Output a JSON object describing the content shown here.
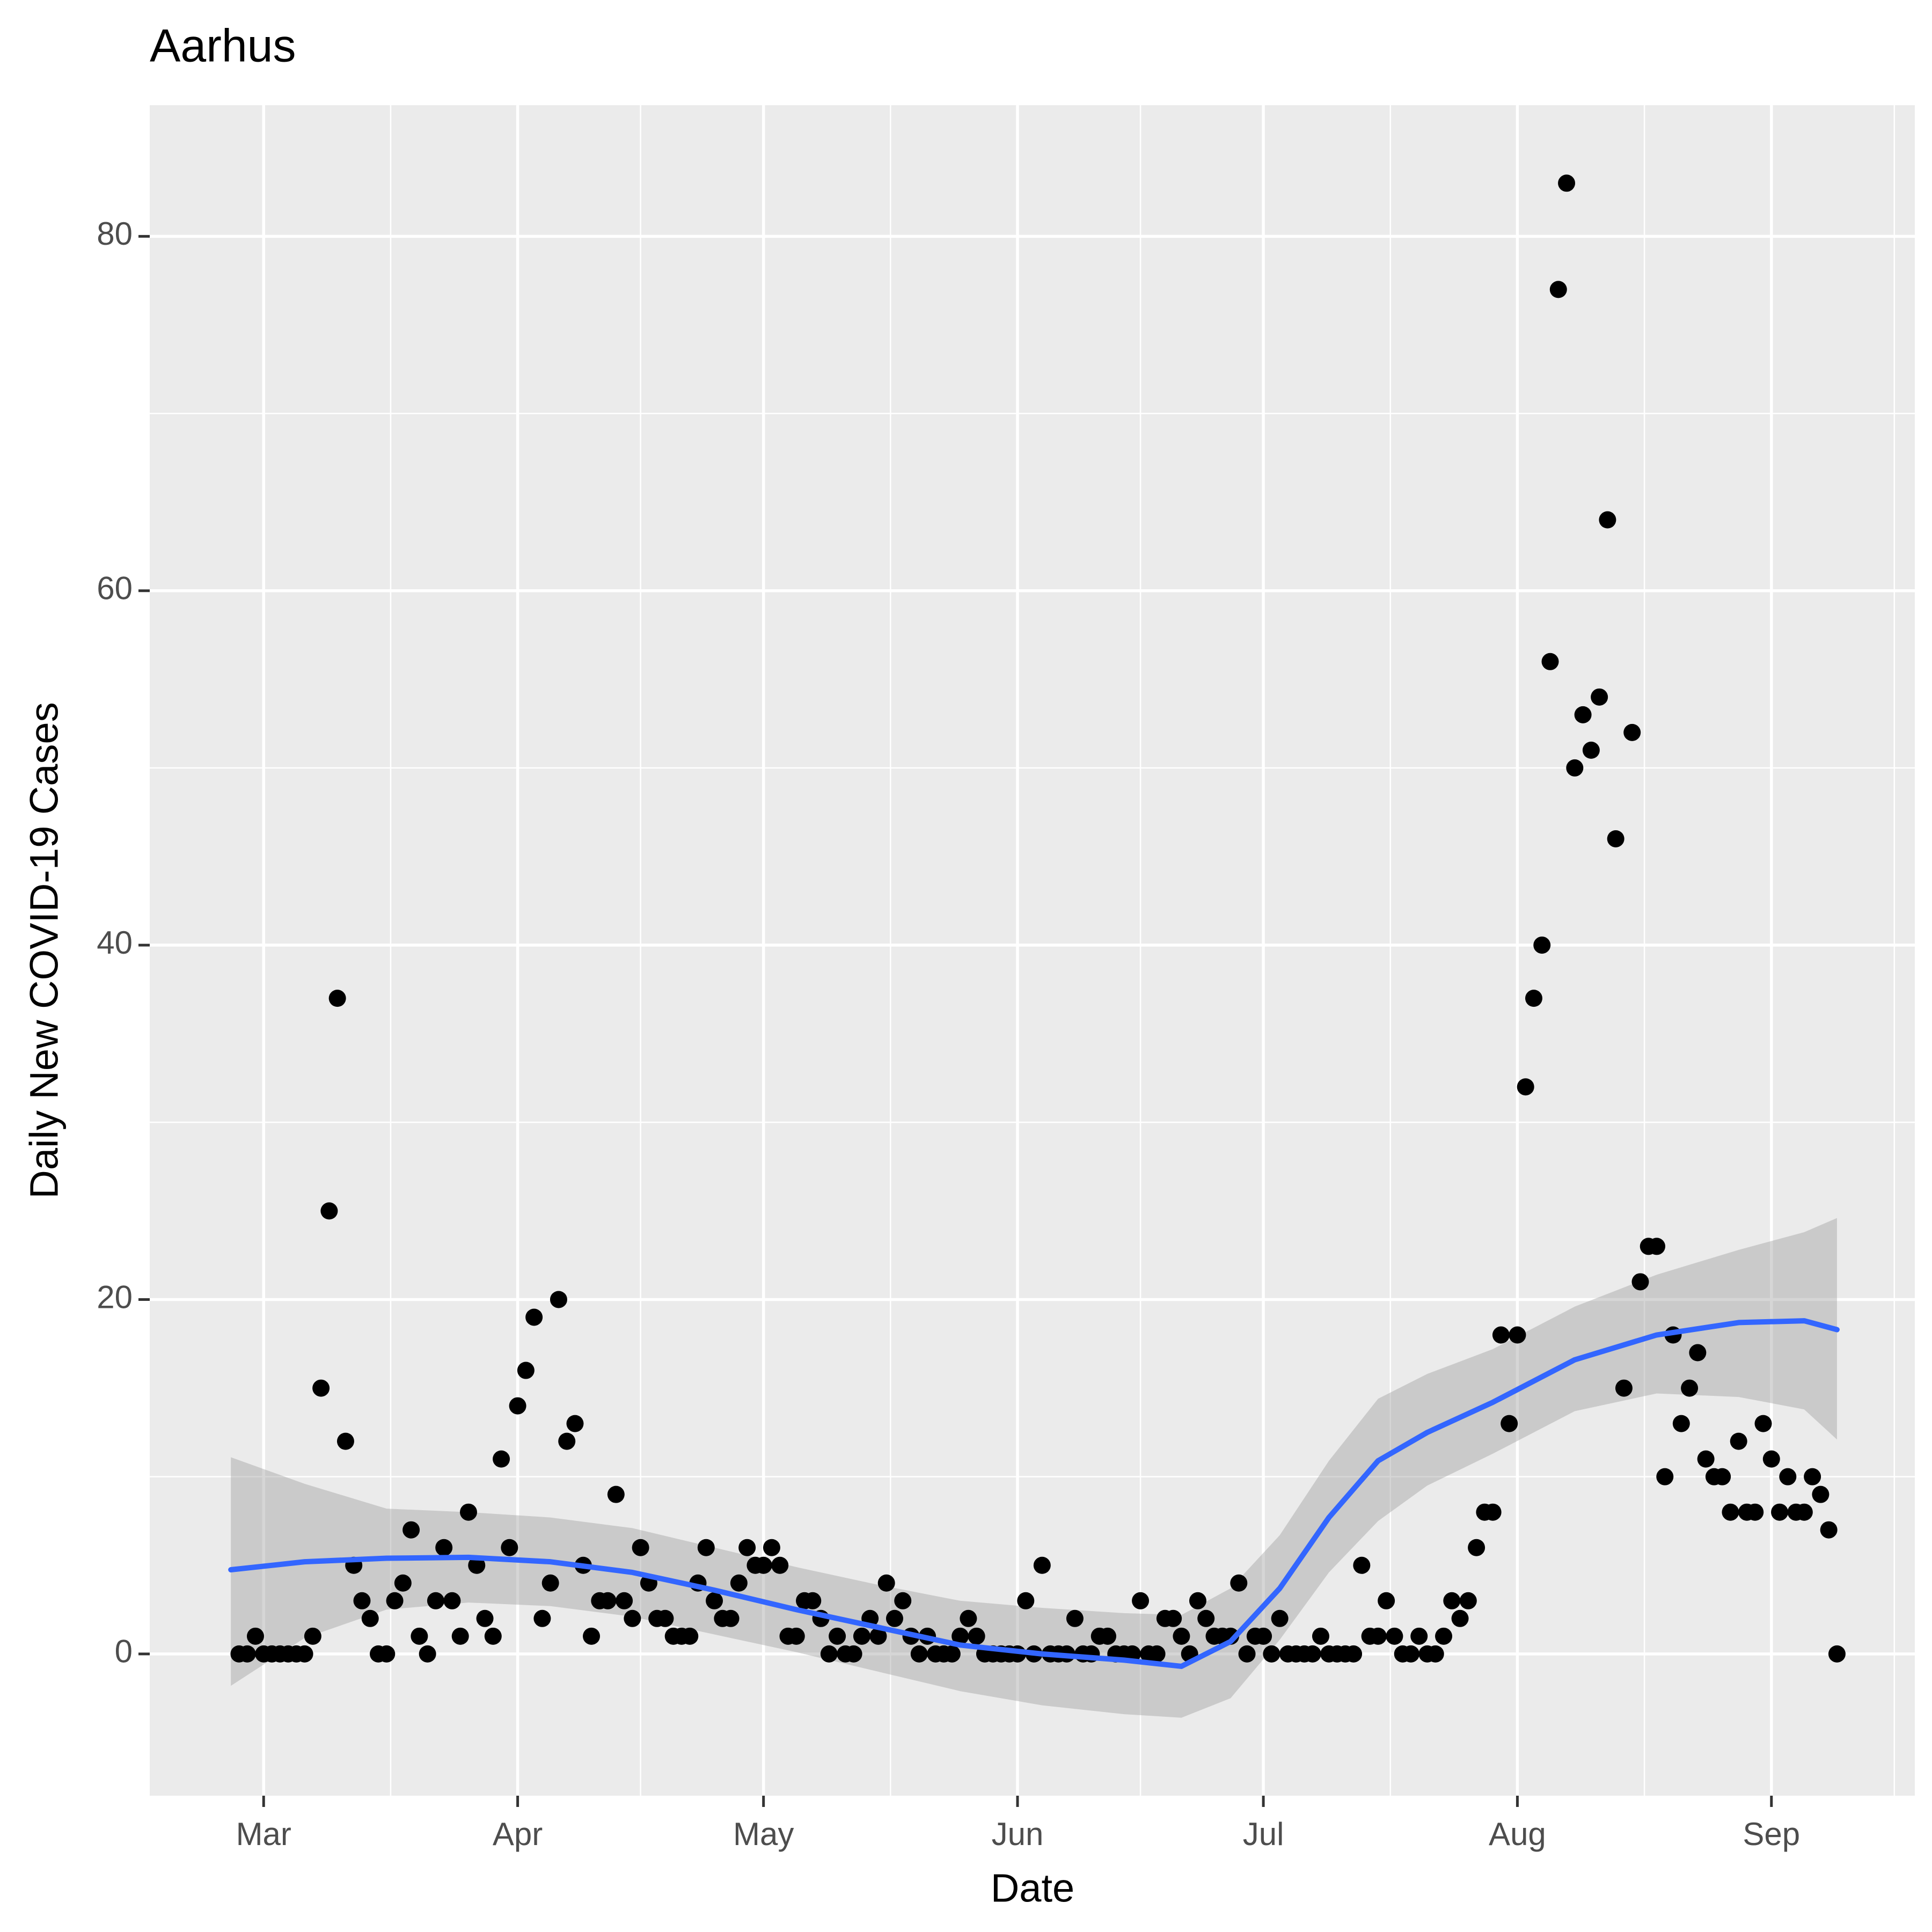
{
  "chart_data": {
    "type": "scatter",
    "title": "Aarhus",
    "x_label": "Date",
    "y_label": "Daily New COVID-19 Cases",
    "x": [
      -3,
      -2,
      -1,
      0,
      1,
      2,
      3,
      4,
      5,
      6,
      7,
      8,
      9,
      10,
      11,
      12,
      13,
      14,
      15,
      16,
      17,
      18,
      19,
      20,
      21,
      22,
      23,
      24,
      25,
      26,
      27,
      28,
      29,
      30,
      31,
      32,
      33,
      34,
      35,
      36,
      37,
      38,
      39,
      40,
      41,
      42,
      43,
      44,
      45,
      46,
      47,
      48,
      49,
      50,
      51,
      52,
      53,
      54,
      55,
      56,
      57,
      58,
      59,
      60,
      61,
      62,
      63,
      64,
      65,
      66,
      67,
      68,
      69,
      70,
      71,
      72,
      73,
      74,
      75,
      76,
      77,
      78,
      79,
      80,
      81,
      82,
      83,
      84,
      85,
      86,
      87,
      88,
      89,
      90,
      91,
      92,
      93,
      94,
      95,
      96,
      97,
      98,
      99,
      100,
      101,
      102,
      103,
      104,
      105,
      106,
      107,
      108,
      109,
      110,
      111,
      112,
      113,
      114,
      115,
      116,
      117,
      118,
      119,
      120,
      121,
      122,
      123,
      124,
      125,
      126,
      127,
      128,
      129,
      130,
      131,
      132,
      133,
      134,
      135,
      136,
      137,
      138,
      139,
      140,
      141,
      142,
      143,
      144,
      145,
      146,
      147,
      148,
      149,
      150,
      151,
      152,
      153,
      154,
      155,
      156,
      157,
      158,
      159,
      160,
      161,
      162,
      163,
      164,
      165,
      166,
      167,
      168,
      169,
      170,
      171,
      172,
      173,
      174,
      175,
      176,
      177,
      178,
      179,
      180,
      181,
      182,
      183,
      184,
      185,
      186,
      187,
      188,
      189,
      190,
      191,
      192
    ],
    "values": [
      0,
      0,
      1,
      0,
      0,
      0,
      0,
      0,
      0,
      1,
      15,
      25,
      37,
      12,
      5,
      3,
      2,
      0,
      0,
      3,
      4,
      7,
      1,
      0,
      3,
      6,
      3,
      1,
      8,
      5,
      2,
      1,
      11,
      6,
      14,
      16,
      19,
      2,
      4,
      20,
      12,
      13,
      5,
      1,
      3,
      3,
      9,
      3,
      2,
      6,
      4,
      2,
      2,
      1,
      1,
      1,
      4,
      6,
      3,
      2,
      2,
      4,
      6,
      5,
      5,
      6,
      5,
      1,
      1,
      3,
      3,
      2,
      0,
      1,
      0,
      0,
      1,
      2,
      1,
      4,
      2,
      3,
      1,
      0,
      1,
      0,
      0,
      0,
      1,
      2,
      1,
      0,
      0,
      0,
      0,
      0,
      3,
      0,
      5,
      0,
      0,
      0,
      2,
      0,
      0,
      1,
      1,
      0,
      0,
      0,
      3,
      0,
      0,
      2,
      2,
      1,
      0,
      3,
      2,
      1,
      1,
      1,
      4,
      0,
      1,
      1,
      0,
      2,
      0,
      0,
      0,
      0,
      1,
      0,
      0,
      0,
      0,
      5,
      1,
      1,
      3,
      1,
      0,
      0,
      1,
      0,
      0,
      1,
      3,
      2,
      3,
      6,
      8,
      8,
      18,
      13,
      18,
      32,
      37,
      40,
      56,
      77,
      83,
      50,
      53,
      51,
      54,
      64,
      46,
      15,
      52,
      21,
      23,
      23,
      10,
      18,
      13,
      15,
      17,
      11,
      10,
      10,
      8,
      12,
      8,
      8,
      13,
      11,
      8,
      10,
      8,
      8,
      10,
      9,
      7,
      0
    ],
    "color": "#000000",
    "smooth": {
      "color": "#3366FF",
      "band_color": "#999999",
      "x": [
        -4,
        5,
        15,
        25,
        35,
        45,
        55,
        65,
        75,
        85,
        95,
        105,
        112,
        118,
        124,
        130,
        136,
        142,
        150,
        160,
        170,
        180,
        188,
        192
      ],
      "values": [
        4.75,
        5.2,
        5.4,
        5.45,
        5.2,
        4.6,
        3.6,
        2.5,
        1.5,
        0.5,
        0.0,
        -0.35,
        -0.7,
        0.7,
        3.7,
        7.7,
        10.9,
        12.5,
        14.2,
        16.6,
        18.0,
        18.7,
        18.8,
        18.3
      ],
      "upper": [
        11.1,
        9.6,
        8.2,
        8.0,
        7.7,
        7.1,
        6.0,
        4.9,
        3.9,
        3.0,
        2.6,
        2.3,
        2.2,
        3.7,
        6.7,
        10.9,
        14.4,
        15.8,
        17.2,
        19.6,
        21.4,
        22.8,
        23.8,
        24.6
      ],
      "lower": [
        -1.8,
        0.9,
        2.5,
        2.9,
        2.7,
        2.1,
        1.1,
        0.1,
        -1.0,
        -2.1,
        -2.9,
        -3.4,
        -3.6,
        -2.5,
        0.8,
        4.6,
        7.5,
        9.5,
        11.3,
        13.7,
        14.7,
        14.5,
        13.8,
        12.1
      ]
    },
    "xlim": [
      -13.9,
      201.5
    ],
    "xticks": [
      {
        "value": 0,
        "label": "Mar"
      },
      {
        "value": 31,
        "label": "Apr"
      },
      {
        "value": 61,
        "label": "May"
      },
      {
        "value": 92,
        "label": "Jun"
      },
      {
        "value": 122,
        "label": "Jul"
      },
      {
        "value": 153,
        "label": "Aug"
      },
      {
        "value": 184,
        "label": "Sep"
      }
    ],
    "xminor": [
      15.5,
      46,
      76.5,
      107,
      137.5,
      168.5,
      199
    ],
    "ylim": [
      -8,
      87.4
    ],
    "yticks": [
      0,
      20,
      40,
      60,
      80
    ],
    "yminor": [
      10,
      30,
      50,
      70
    ],
    "grid": true
  }
}
